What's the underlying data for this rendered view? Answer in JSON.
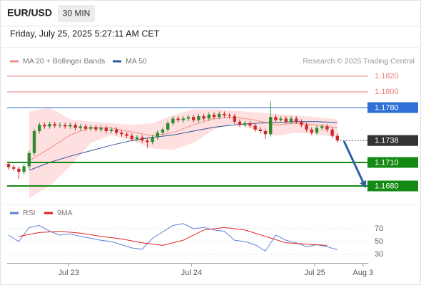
{
  "header": {
    "symbol": "EUR/USD",
    "interval": "30 MIN",
    "date": "Friday, July 25, 2025 5:27:11 AM CET"
  },
  "chart_data": [
    {
      "type": "candlestick",
      "credit": "Research © 2025 Trading Central",
      "up_color": "#2e8b2e",
      "down_color": "#cc2a2a",
      "xlim": [
        0,
        70
      ],
      "ylim": [
        1.166,
        1.184
      ],
      "x": [
        0,
        1,
        2,
        3,
        4,
        5,
        6,
        7,
        8,
        9,
        10,
        11,
        12,
        13,
        14,
        15,
        16,
        17,
        18,
        19,
        20,
        21,
        22,
        23,
        24,
        25,
        26,
        27,
        28,
        29,
        30,
        31,
        32,
        33,
        34,
        35,
        36,
        37,
        38,
        39,
        40,
        41,
        42,
        43,
        44,
        45,
        46,
        47,
        48,
        49,
        50,
        51,
        52,
        53,
        54,
        55,
        56,
        57,
        58,
        59,
        60,
        61,
        62,
        63,
        64
      ],
      "open": [
        1.1708,
        1.1704,
        1.1702,
        1.1698,
        1.1705,
        1.1722,
        1.175,
        1.1758,
        1.1756,
        1.1759,
        1.1757,
        1.1758,
        1.1756,
        1.1758,
        1.1754,
        1.1756,
        1.1753,
        1.1755,
        1.1752,
        1.1754,
        1.175,
        1.1752,
        1.1748,
        1.1746,
        1.1744,
        1.174,
        1.1742,
        1.1738,
        1.1736,
        1.1742,
        1.1748,
        1.1752,
        1.176,
        1.1766,
        1.1764,
        1.1766,
        1.1768,
        1.1764,
        1.1769,
        1.1766,
        1.1771,
        1.1768,
        1.1772,
        1.177,
        1.1769,
        1.1762,
        1.1758,
        1.176,
        1.1757,
        1.1752,
        1.175,
        1.1746,
        1.1768,
        1.1764,
        1.1766,
        1.1762,
        1.1766,
        1.1762,
        1.1758,
        1.1752,
        1.1748,
        1.1754,
        1.1756,
        1.1752,
        1.1744
      ],
      "high": [
        1.1711,
        1.1707,
        1.1705,
        1.1708,
        1.1725,
        1.1753,
        1.1761,
        1.1761,
        1.1762,
        1.1762,
        1.1761,
        1.1761,
        1.1761,
        1.1761,
        1.1759,
        1.1759,
        1.1758,
        1.1758,
        1.1757,
        1.1757,
        1.1755,
        1.1755,
        1.1751,
        1.1749,
        1.1747,
        1.1745,
        1.1745,
        1.1741,
        1.1745,
        1.1751,
        1.1755,
        1.1763,
        1.1769,
        1.1769,
        1.1769,
        1.1771,
        1.1771,
        1.1772,
        1.1772,
        1.1774,
        1.1774,
        1.1775,
        1.1775,
        1.1773,
        1.1772,
        1.1765,
        1.1763,
        1.1763,
        1.176,
        1.1755,
        1.1753,
        1.1788,
        1.1771,
        1.1769,
        1.1769,
        1.1769,
        1.1769,
        1.1765,
        1.1761,
        1.1755,
        1.1757,
        1.1759,
        1.1759,
        1.1755,
        1.1747
      ],
      "low": [
        1.1701,
        1.1699,
        1.1689,
        1.1695,
        1.1702,
        1.1719,
        1.1747,
        1.1753,
        1.1753,
        1.1754,
        1.1754,
        1.1753,
        1.1753,
        1.1751,
        1.1751,
        1.175,
        1.175,
        1.1749,
        1.1749,
        1.1747,
        1.1747,
        1.1745,
        1.1743,
        1.1741,
        1.1737,
        1.1737,
        1.1735,
        1.1728,
        1.1733,
        1.1739,
        1.1745,
        1.1749,
        1.1757,
        1.1761,
        1.1761,
        1.1763,
        1.1761,
        1.1761,
        1.1763,
        1.1763,
        1.1765,
        1.1765,
        1.1767,
        1.1766,
        1.1759,
        1.1755,
        1.1755,
        1.1754,
        1.1749,
        1.1747,
        1.174,
        1.1743,
        1.1761,
        1.1761,
        1.1759,
        1.1759,
        1.1759,
        1.1755,
        1.1749,
        1.1745,
        1.1745,
        1.1751,
        1.1749,
        1.1741,
        1.1735
      ],
      "close": [
        1.1704,
        1.1702,
        1.1698,
        1.1705,
        1.1722,
        1.175,
        1.1758,
        1.1756,
        1.1759,
        1.1757,
        1.1758,
        1.1756,
        1.1758,
        1.1754,
        1.1756,
        1.1753,
        1.1755,
        1.1752,
        1.1754,
        1.175,
        1.1752,
        1.1748,
        1.1746,
        1.1744,
        1.174,
        1.1742,
        1.1738,
        1.1736,
        1.1742,
        1.1748,
        1.1752,
        1.176,
        1.1766,
        1.1764,
        1.1766,
        1.1768,
        1.1764,
        1.1769,
        1.1766,
        1.1771,
        1.1768,
        1.1772,
        1.177,
        1.1769,
        1.1762,
        1.1758,
        1.176,
        1.1757,
        1.1752,
        1.175,
        1.1746,
        1.1768,
        1.1764,
        1.1766,
        1.1762,
        1.1766,
        1.1762,
        1.1758,
        1.1752,
        1.1748,
        1.1754,
        1.1756,
        1.1752,
        1.1744,
        1.1738
      ],
      "series": [
        {
          "name": "MA 20 + Bollinger Bands",
          "color": "#ef8e86",
          "band_color": "#ffd3d3",
          "x": [
            4,
            8,
            12,
            16,
            20,
            24,
            28,
            32,
            36,
            40,
            44,
            48,
            52,
            56,
            60,
            64
          ],
          "values": [
            1.1712,
            1.1728,
            1.1745,
            1.1755,
            1.1754,
            1.1749,
            1.1744,
            1.1748,
            1.1758,
            1.1766,
            1.1768,
            1.1764,
            1.1758,
            1.176,
            1.1758,
            1.1754
          ],
          "upper": [
            1.1775,
            1.178,
            1.1765,
            1.1762,
            1.176,
            1.1758,
            1.176,
            1.177,
            1.1778,
            1.1778,
            1.1776,
            1.1774,
            1.1772,
            1.177,
            1.1768,
            1.1765
          ],
          "lower": [
            1.1665,
            1.168,
            1.1705,
            1.1735,
            1.1745,
            1.1738,
            1.1728,
            1.1726,
            1.1735,
            1.1752,
            1.176,
            1.1752,
            1.1744,
            1.1748,
            1.1746,
            1.1742
          ]
        },
        {
          "name": "MA 50",
          "color": "#2d5597",
          "x": [
            4,
            8,
            12,
            16,
            20,
            24,
            28,
            32,
            36,
            40,
            44,
            48,
            52,
            56,
            60,
            64
          ],
          "values": [
            1.17,
            1.171,
            1.1718,
            1.1725,
            1.1732,
            1.1738,
            1.1742,
            1.1745,
            1.175,
            1.1755,
            1.1758,
            1.176,
            1.1761,
            1.1762,
            1.1762,
            1.1761
          ]
        }
      ],
      "levels": [
        {
          "value": 1.182,
          "label": "1.1820",
          "color": "#ee7b7b",
          "style": "line"
        },
        {
          "value": 1.18,
          "label": "1.1800",
          "color": "#ee7b7b",
          "style": "line"
        },
        {
          "value": 1.178,
          "label": "1.1780",
          "color": "#2f6fd6",
          "style": "box"
        },
        {
          "value": 1.1738,
          "label": "1.1738",
          "color": "#333333",
          "style": "dotted"
        },
        {
          "value": 1.171,
          "label": "1.1710",
          "color": "#138a13",
          "style": "thick"
        },
        {
          "value": 1.168,
          "label": "1.1680",
          "color": "#138a13",
          "style": "thick"
        }
      ]
    },
    {
      "type": "line",
      "xlim": [
        0,
        70
      ],
      "ylim": [
        16,
        84
      ],
      "yticks": [
        70,
        50,
        30
      ],
      "xticks": [
        {
          "value": 11.7,
          "label": "Jul 23"
        },
        {
          "value": 35.6,
          "label": "Jul 24"
        },
        {
          "value": 59.6,
          "label": "Jul 25"
        },
        {
          "value": 69,
          "label": "Aug 3"
        }
      ],
      "series": [
        {
          "name": "RSI",
          "color": "#5b7fd6",
          "x": [
            0,
            2,
            4,
            6,
            8,
            10,
            12,
            14,
            16,
            18,
            20,
            22,
            24,
            26,
            28,
            30,
            32,
            34,
            36,
            38,
            40,
            42,
            44,
            46,
            48,
            50,
            52,
            54,
            56,
            58,
            60,
            62,
            64
          ],
          "values": [
            60,
            50,
            72,
            75,
            66,
            60,
            62,
            58,
            55,
            52,
            50,
            45,
            40,
            38,
            55,
            65,
            75,
            78,
            70,
            72,
            68,
            66,
            52,
            50,
            45,
            35,
            60,
            52,
            48,
            42,
            45,
            42,
            37
          ]
        },
        {
          "name": "9MA",
          "color": "#e02020",
          "x": [
            2,
            6,
            10,
            14,
            18,
            22,
            26,
            30,
            34,
            38,
            42,
            46,
            50,
            54,
            58,
            62
          ],
          "values": [
            58,
            64,
            66,
            63,
            58,
            54,
            48,
            44,
            52,
            68,
            72,
            68,
            58,
            48,
            46,
            44
          ]
        }
      ]
    }
  ]
}
